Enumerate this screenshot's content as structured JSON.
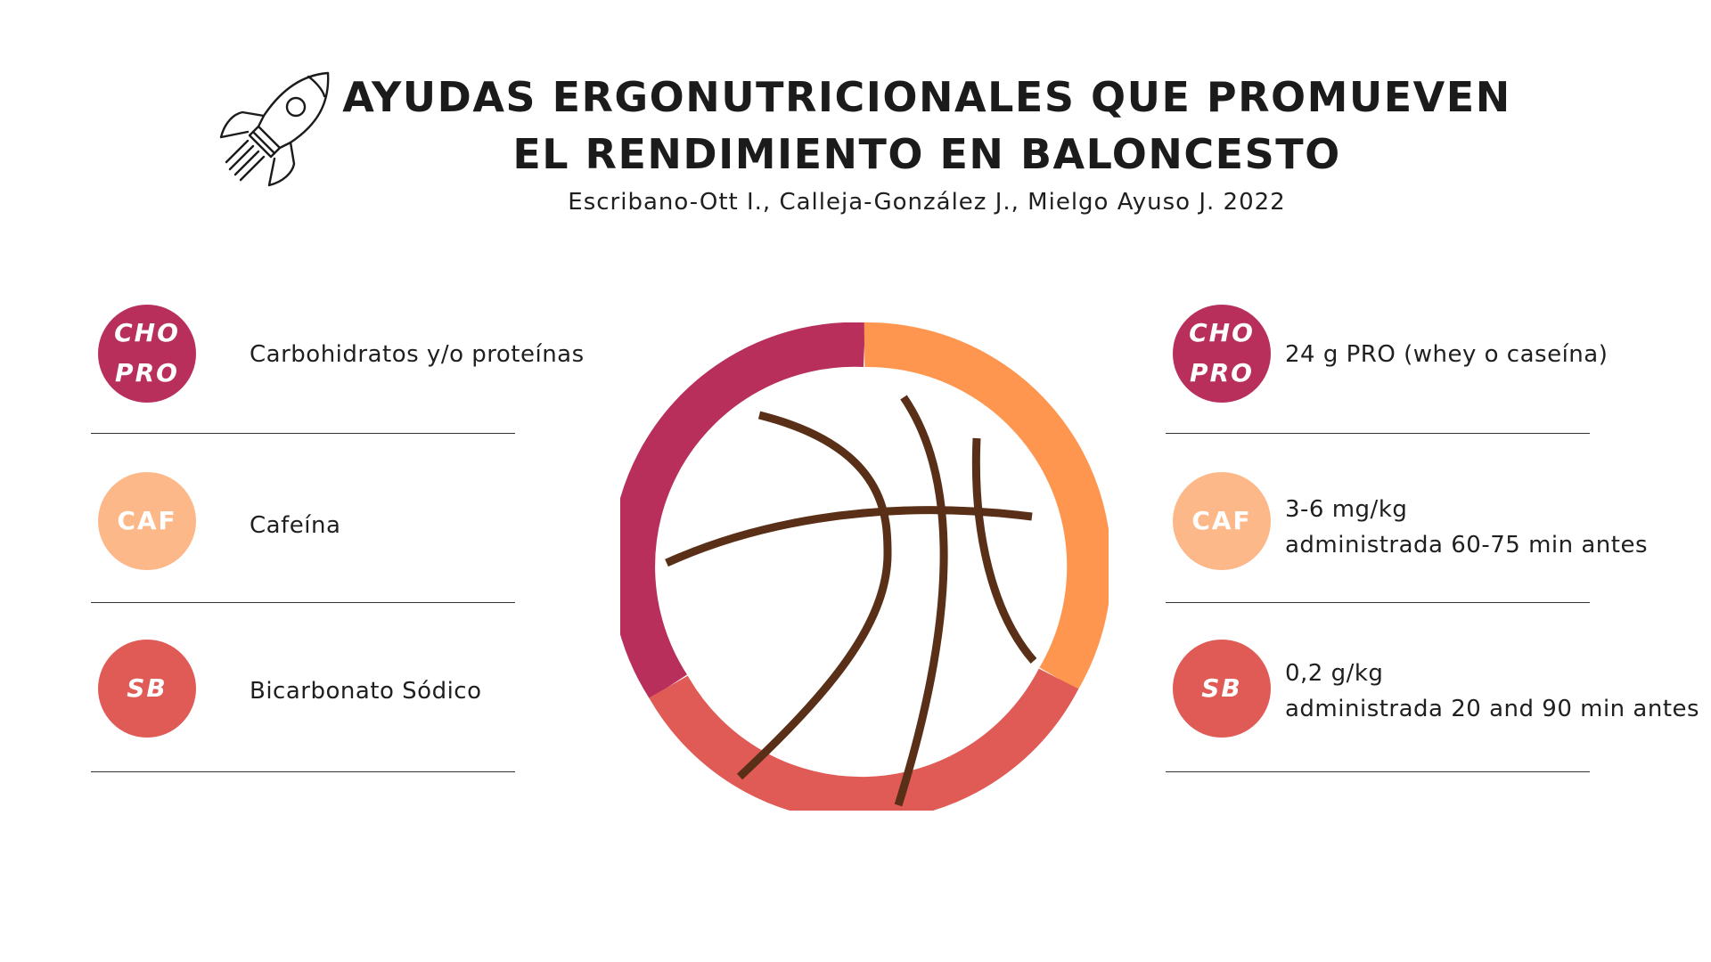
{
  "header": {
    "title_line_1": "AYUDAS ERGONUTRICIONALES QUE PROMUEVEN",
    "title_line_2": "EL RENDIMIENTO EN BALONCESTO",
    "subtitle": "Escribano-Ott I., Calleja-González J., Mielgo Ayuso J. 2022",
    "icon": "rocket-icon"
  },
  "left_items": [
    {
      "badge_line_1": "CHO",
      "badge_line_2": "PRO",
      "label": "Carbohidratos y/o proteínas",
      "color": "#B82F5C"
    },
    {
      "badge_line_1": "CAF",
      "label": "Cafeína",
      "color": "#FDB88A"
    },
    {
      "badge_line_1": "SB",
      "label": "Bicarbonato Sódico",
      "color": "#E05A56"
    }
  ],
  "right_items": [
    {
      "badge_line_1": "CHO",
      "badge_line_2": "PRO",
      "line_1": "24 g PRO (whey o caseína)",
      "color": "#B82F5C"
    },
    {
      "badge_line_1": "CAF",
      "line_1": "3-6 mg/kg",
      "line_2": "administrada 60-75 min antes",
      "color": "#FDB88A"
    },
    {
      "badge_line_1": "SB",
      "line_1": "0,2 g/kg",
      "line_2": "administrada 20 and 90 min antes",
      "color": "#E05A56"
    }
  ],
  "center_graphic": {
    "icon": "basketball-icon",
    "ring_colors": [
      "#B82F5C",
      "#FF9650",
      "#E05A56"
    ],
    "line_color": "#5A2F17"
  }
}
